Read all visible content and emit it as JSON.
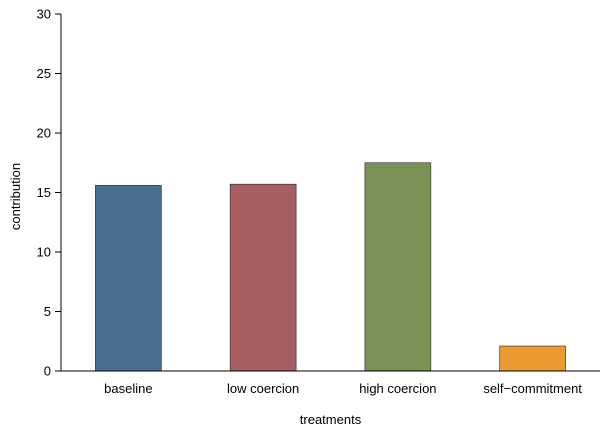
{
  "chart_data": {
    "type": "bar",
    "title": "",
    "xlabel": "treatments",
    "ylabel": "contribution",
    "categories": [
      "baseline",
      "low coercion",
      "high coercion",
      "self−commitment"
    ],
    "values": [
      15.6,
      15.7,
      17.5,
      2.1
    ],
    "colors": [
      "#4a6e8f",
      "#a65e63",
      "#7a9156",
      "#ea9a33"
    ],
    "ylim": [
      0,
      30
    ],
    "yticks": [
      "0",
      "5",
      "10",
      "15",
      "20",
      "25",
      "30"
    ],
    "grid": false,
    "legend": "none"
  }
}
